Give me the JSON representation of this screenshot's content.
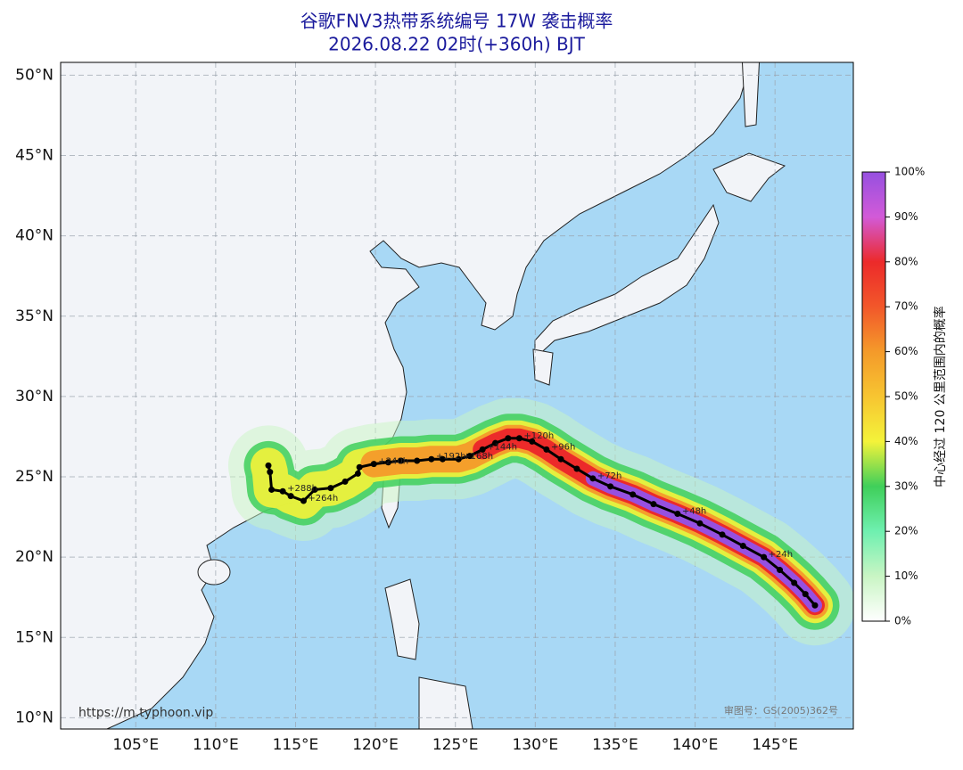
{
  "map": {
    "title": "谷歌FNV3热带系统编号 17W 袭击概率",
    "subtitle": "2026.08.22 02时(+360h) BJT",
    "xlim": [
      100.3,
      149.9
    ],
    "ylim": [
      9.3,
      50.8
    ],
    "xticks": [
      {
        "value": 105,
        "label": "105°E"
      },
      {
        "value": 110,
        "label": "110°E"
      },
      {
        "value": 115,
        "label": "115°E"
      },
      {
        "value": 120,
        "label": "120°E"
      },
      {
        "value": 125,
        "label": "125°E"
      },
      {
        "value": 130,
        "label": "130°E"
      },
      {
        "value": 135,
        "label": "135°E"
      },
      {
        "value": 140,
        "label": "140°E"
      },
      {
        "value": 145,
        "label": "145°E"
      }
    ],
    "yticks": [
      {
        "value": 10,
        "label": "10°N"
      },
      {
        "value": 15,
        "label": "15°N"
      },
      {
        "value": 20,
        "label": "20°N"
      },
      {
        "value": 25,
        "label": "25°N"
      },
      {
        "value": 30,
        "label": "30°N"
      },
      {
        "value": 35,
        "label": "35°N"
      },
      {
        "value": 40,
        "label": "40°N"
      },
      {
        "value": 45,
        "label": "45°N"
      },
      {
        "value": 50,
        "label": "50°N"
      }
    ],
    "grid": true,
    "track": {
      "color": "#000000",
      "lon": [
        147.5,
        146.9,
        146.2,
        145.3,
        144.3,
        143.0,
        141.7,
        140.3,
        138.9,
        137.4,
        136.1,
        134.7,
        133.6,
        132.6,
        131.6,
        130.7,
        129.8,
        129.0,
        128.3,
        127.5,
        126.7,
        125.9,
        125.2,
        124.2,
        123.5,
        122.6,
        121.6,
        120.8,
        119.9,
        119.0,
        118.9,
        118.1,
        117.2,
        116.2,
        115.5,
        114.7,
        114.2,
        113.5,
        113.4,
        113.3
      ],
      "lat": [
        17.0,
        17.7,
        18.4,
        19.2,
        20.0,
        20.7,
        21.4,
        22.1,
        22.7,
        23.3,
        23.9,
        24.4,
        24.9,
        25.5,
        26.1,
        26.7,
        27.2,
        27.4,
        27.4,
        27.1,
        26.7,
        26.3,
        26.1,
        26.1,
        26.1,
        26.0,
        26.0,
        25.9,
        25.8,
        25.6,
        25.2,
        24.7,
        24.3,
        24.2,
        23.5,
        23.8,
        24.1,
        24.2,
        25.3,
        25.7
      ],
      "labels": [
        null,
        null,
        null,
        null,
        "+24h",
        null,
        null,
        null,
        "+48h",
        null,
        null,
        null,
        "+72h",
        null,
        null,
        "+96h",
        null,
        "+120h",
        null,
        null,
        "+144h",
        null,
        "+168h",
        null,
        "+192h",
        null,
        null,
        null,
        "+240h",
        null,
        null,
        null,
        null,
        null,
        "+264h",
        null,
        "+288h",
        null,
        null,
        null
      ]
    },
    "colorbar": {
      "label": "中心经过 120 公里范围内的概率",
      "ticks": [
        {
          "value": 0,
          "label": "0%"
        },
        {
          "value": 10,
          "label": "10%"
        },
        {
          "value": 20,
          "label": "20%"
        },
        {
          "value": 30,
          "label": "30%"
        },
        {
          "value": 40,
          "label": "40%"
        },
        {
          "value": 50,
          "label": "50%"
        },
        {
          "value": 60,
          "label": "60%"
        },
        {
          "value": 70,
          "label": "70%"
        },
        {
          "value": 80,
          "label": "80%"
        },
        {
          "value": 90,
          "label": "90%"
        },
        {
          "value": 100,
          "label": "100%"
        }
      ],
      "colors": [
        "#ffffff",
        "#c9f5c4",
        "#6ff0b0",
        "#3fcf5a",
        "#f4f33a",
        "#f7c531",
        "#f49a2a",
        "#f2572a",
        "#ec2a2a",
        "#d25ad8",
        "#9650e0"
      ]
    },
    "source": "https://m.typhoon.vip",
    "approval": "审图号：GS(2005)362号"
  }
}
